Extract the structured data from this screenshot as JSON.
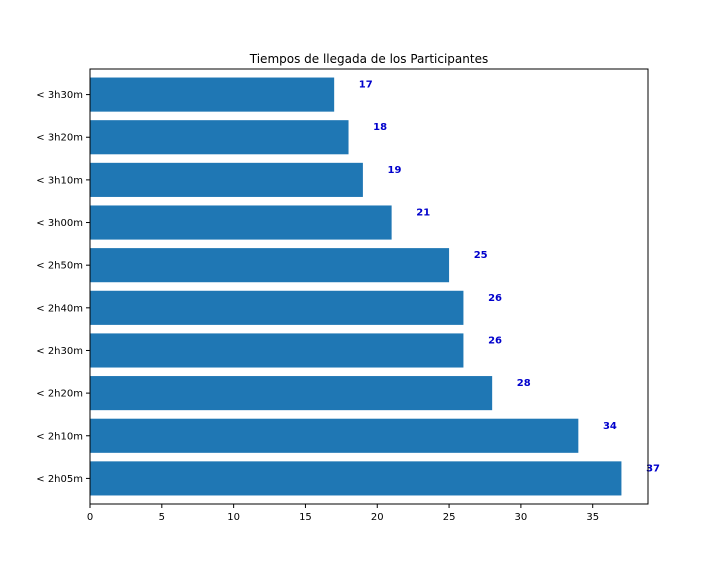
{
  "chart_data": {
    "type": "bar",
    "orientation": "horizontal",
    "title": "Tiempos de llegada de los Participantes",
    "xlabel": "",
    "ylabel": "",
    "categories": [
      "< 2h05m",
      "< 2h10m",
      "< 2h20m",
      "< 2h30m",
      "< 2h40m",
      "< 2h50m",
      "< 3h00m",
      "< 3h10m",
      "< 3h20m",
      "< 3h30m"
    ],
    "values": [
      37,
      34,
      28,
      26,
      26,
      25,
      21,
      19,
      18,
      17
    ],
    "data_labels": [
      "37",
      "34",
      "28",
      "26",
      "26",
      "25",
      "21",
      "19",
      "18",
      "17"
    ],
    "xlim": [
      0,
      38.85
    ],
    "xticks": [
      0,
      5,
      10,
      15,
      20,
      25,
      30,
      35
    ],
    "xtick_labels": [
      "0",
      "5",
      "10",
      "15",
      "20",
      "25",
      "30",
      "35"
    ],
    "grid": false,
    "colors": {
      "bar": "#1f77b4",
      "label": "#0000cc",
      "axis": "#000000"
    }
  }
}
